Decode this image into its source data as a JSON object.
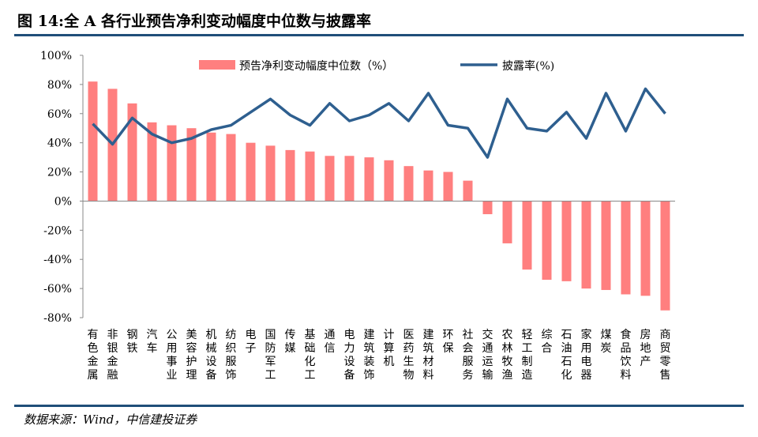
{
  "title": "图 14:全 A 各行业预告净利变动幅度中位数与披露率",
  "source": "数据来源：Wind，中信建投证券",
  "chart_data": {
    "type": "bar+line",
    "categories": [
      "有色金属",
      "非银金融",
      "钢铁",
      "汽车",
      "公用事业",
      "美容护理",
      "机械设备",
      "纺织服饰",
      "电子",
      "国防军工",
      "传媒",
      "基础化工",
      "通信",
      "电力设备",
      "建筑装饰",
      "计算机",
      "医药生物",
      "建筑材料",
      "环保",
      "社会服务",
      "交通运输",
      "农林牧渔",
      "轻工制造",
      "综合",
      "石油石化",
      "家用电器",
      "煤炭",
      "食品饮料",
      "房地产",
      "商贸零售"
    ],
    "series": [
      {
        "name": "预告净利变动幅度中位数（%）",
        "type": "bar",
        "color": "#ff7f7f",
        "values": [
          82,
          77,
          67,
          54,
          52,
          50,
          47,
          46,
          40,
          38,
          35,
          34,
          31,
          31,
          30,
          28,
          24,
          21,
          20,
          14,
          -9,
          -29,
          -47,
          -54,
          -55,
          -60,
          -61,
          -64,
          -65,
          -75
        ]
      },
      {
        "name": "披露率(%)",
        "type": "line",
        "color": "#2e5f8f",
        "values": [
          53,
          39,
          57,
          46,
          40,
          43,
          49,
          52,
          61,
          70,
          59,
          52,
          67,
          55,
          59,
          67,
          55,
          74,
          52,
          50,
          30,
          70,
          50,
          48,
          61,
          43,
          74,
          48,
          77,
          60
        ]
      }
    ],
    "ylim": [
      -80,
      100
    ],
    "yticks": [
      "100%",
      "80%",
      "60%",
      "40%",
      "20%",
      "0%",
      "-20%",
      "-40%",
      "-60%",
      "-80%"
    ],
    "grid": false,
    "legend": "top"
  }
}
